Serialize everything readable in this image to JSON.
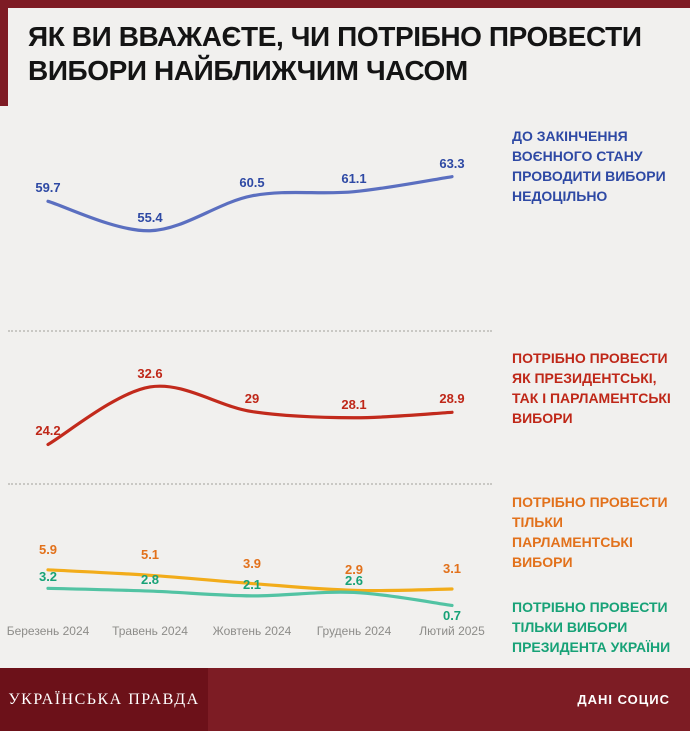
{
  "title": {
    "line1": "ЯК ВИ ВВАЖАЄТЕ, ЧИ ПОТРІБНО ПРОВЕСТИ",
    "line2": "ВИБОРИ НАЙБЛИЖЧИМ ЧАСОМ"
  },
  "footer": {
    "brand": "УКРАЇНСЬКА ПРАВДА",
    "source": "ДАНІ СОЦИС"
  },
  "colors": {
    "accent_maroon": "#7e1b24",
    "background": "#f1f0ee",
    "blue_line": "#5b6fc0",
    "blue_text": "#2e49a4",
    "red_line": "#c22a1c",
    "red_text": "#bf2718",
    "orange_line": "#f2ac1a",
    "orange_text": "#e2711b",
    "green_line": "#52c3a3",
    "green_text": "#17a277",
    "axis_label": "#8d8c89"
  },
  "chart_data": {
    "type": "line",
    "title": "ЯК ВИ ВВАЖАЄТЕ, ЧИ ПОТРІБНО ПРОВЕСТИ ВИБОРИ НАЙБЛИЖЧИМ ЧАСОМ",
    "categories": [
      "Березень 2024",
      "Травень 2024",
      "Жовтень 2024",
      "Грудень 2024",
      "Лютий 2025"
    ],
    "ylim": [
      0,
      65
    ],
    "grid": "two horizontal dotted separators",
    "legend_position": "right",
    "series": [
      {
        "id": "martial-law-no-elections",
        "name": "ДО ЗАКІНЧЕННЯ ВОЄННОГО СТАНУ ПРОВОДИТИ ВИБОРИ НЕДОЦІЛЬНО",
        "legend_lines": [
          "ДО ЗАКІНЧЕННЯ",
          "ВОЄННОГО СТАНУ",
          "ПРОВОДИТИ ВИБОРИ",
          "НЕДОЦІЛЬНО"
        ],
        "values": [
          59.7,
          55.4,
          60.5,
          61.1,
          63.3
        ],
        "display": [
          "59.7",
          "55.4",
          "60.5",
          "61.1",
          "63.3"
        ],
        "line_color": "#5b6fc0",
        "text_color": "#2e49a4",
        "label_side": [
          "a",
          "a",
          "a",
          "a",
          "a"
        ],
        "label_gap": 7,
        "label_gap_below": 6,
        "legend_top": 126
      },
      {
        "id": "both-presidential-and-parliamentary",
        "name": "ПОТРІБНО ПРОВЕСТИ ЯК ПРЕЗИДЕНТСЬКІ, ТАК І ПАРЛАМЕНТСЬКІ ВИБОРИ",
        "legend_lines": [
          "ПОТРІБНО ПРОВЕСТИ",
          "ЯК ПРЕЗИДЕНТСЬКІ,",
          "ТАК І ПАРЛАМЕНТСЬКІ",
          "ВИБОРИ"
        ],
        "values": [
          24.2,
          32.6,
          29,
          28.1,
          28.9
        ],
        "display": [
          "24.2",
          "32.6",
          "29",
          "28.1",
          "28.9"
        ],
        "line_color": "#c22a1c",
        "text_color": "#bf2718",
        "label_side": [
          "a",
          "a",
          "a",
          "a",
          "a"
        ],
        "label_gap": 7,
        "label_gap_below": 6,
        "legend_top": 348
      },
      {
        "id": "parliamentary-only",
        "name": "ПОТРІБНО ПРОВЕСТИ ТІЛЬКИ ПАРЛАМЕНТСЬКІ ВИБОРИ",
        "legend_lines": [
          "ПОТРІБНО ПРОВЕСТИ",
          "ТІЛЬКИ",
          "ПАРЛАМЕНТСЬКІ",
          "ВИБОРИ"
        ],
        "values": [
          5.9,
          5.1,
          3.9,
          2.9,
          3.1
        ],
        "display": [
          "5.9",
          "5.1",
          "3.9",
          "2.9",
          "3.1"
        ],
        "line_color": "#f2ac1a",
        "text_color": "#e2711b",
        "label_side": [
          "a",
          "a",
          "a",
          "a",
          "a"
        ],
        "label_gap": 14,
        "label_gap_below": 6,
        "legend_top": 492
      },
      {
        "id": "presidential-only",
        "name": "ПОТРІБНО ПРОВЕСТИ ТІЛЬКИ ВИБОРИ ПРЕЗИДЕНТА УКРАЇНИ",
        "legend_lines": [
          "ПОТРІБНО ПРОВЕСТИ",
          "ТІЛЬКИ ВИБОРИ",
          "ПРЕЗИДЕНТА УКРАЇНИ"
        ],
        "values": [
          3.2,
          2.8,
          2.1,
          2.6,
          0.7
        ],
        "display": [
          "3.2",
          "2.8",
          "2.1",
          "2.6",
          "0.7"
        ],
        "line_color": "#52c3a3",
        "text_color": "#17a277",
        "label_side": [
          "a",
          "a",
          "a",
          "a",
          "b"
        ],
        "label_gap": 5,
        "label_gap_below": 4,
        "legend_top": 597
      }
    ]
  }
}
